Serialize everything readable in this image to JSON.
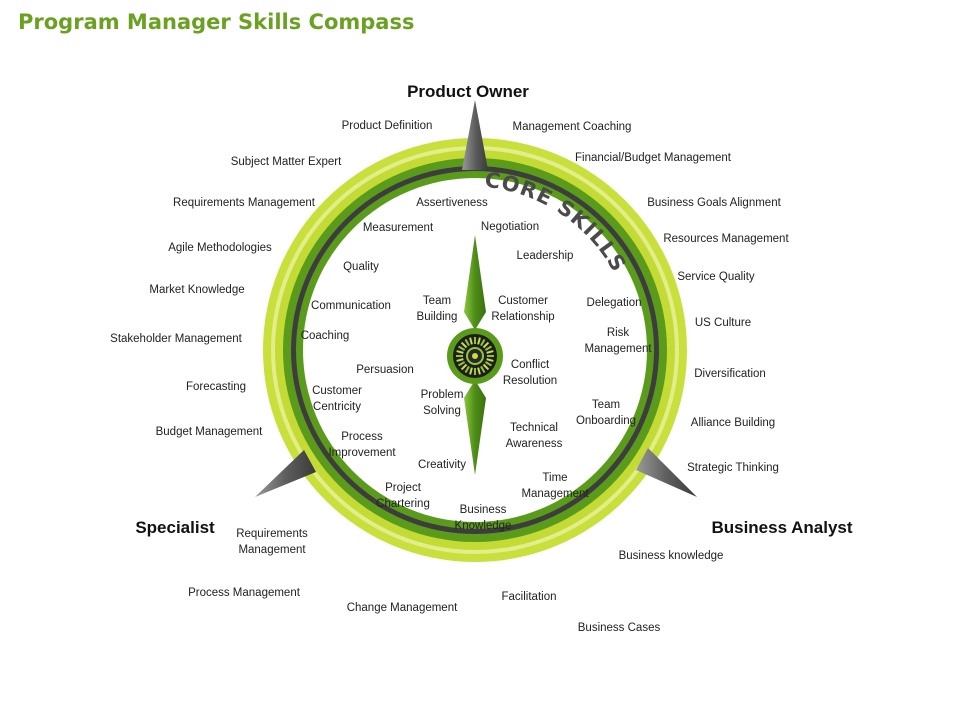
{
  "title": "Program Manager Skills Compass",
  "roles": {
    "product_owner": "Product Owner",
    "specialist": "Specialist",
    "business_analyst": "Business Analyst"
  },
  "core_label": "CORE SKILLS",
  "outer_skills": {
    "product_definition": "Product Definition",
    "management_coaching": "Management  Coaching",
    "subject_matter_expert": "Subject Matter Expert",
    "financial_budget": "Financial/Budget Management",
    "requirements_management": "Requirements  Management",
    "business_goals": "Business Goals Alignment",
    "agile": "Agile Methodologies",
    "resources": "Resources Management",
    "market_knowledge": "Market Knowledge",
    "service_quality": "Service Quality",
    "stakeholder": "Stakeholder Management",
    "us_culture": "US Culture",
    "forecasting": "Forecasting",
    "diversification": "Diversification",
    "budget_management": "Budget  Management",
    "alliance": "Alliance Building",
    "strategic": "Strategic Thinking",
    "requirements_mgmt2": "Requirements\nManagement",
    "business_knowledge_outer": "Business knowledge",
    "process_management": "Process Management",
    "change_management": "Change Management",
    "facilitation": "Facilitation",
    "business_cases": "Business Cases"
  },
  "inner_skills": {
    "assertiveness": "Assertiveness",
    "negotiation": "Negotiation",
    "measurement": "Measurement",
    "leadership": "Leadership",
    "quality": "Quality",
    "communication": "Communication",
    "team_building": "Team\nBuilding",
    "customer_relationship": "Customer\nRelationship",
    "delegation": "Delegation",
    "coaching": "Coaching",
    "risk_management": "Risk\nManagement",
    "persuasion": "Persuasion",
    "conflict_resolution": "Conflict\nResolution",
    "customer_centricity": "Customer\nCentricity",
    "problem_solving": "Problem\nSolving",
    "team_onboarding": "Team\nOnboarding",
    "process_improvement": "Process\nImprovement",
    "technical_awareness": "Technical\nAwareness",
    "creativity": "Creativity",
    "time_management": "Time\nManagement",
    "project_chartering": "Project\nChartering",
    "business_knowledge_inner": "Business\nKnowledge"
  },
  "colors": {
    "title_green": "#6aa121",
    "outer_ring_light": "#c9df3b",
    "ring_green": "#5b9b1c",
    "ring_dark": "#3d3d3d",
    "needle_green": "#6cab2a",
    "pointer_gray": "#6b6b6b"
  }
}
